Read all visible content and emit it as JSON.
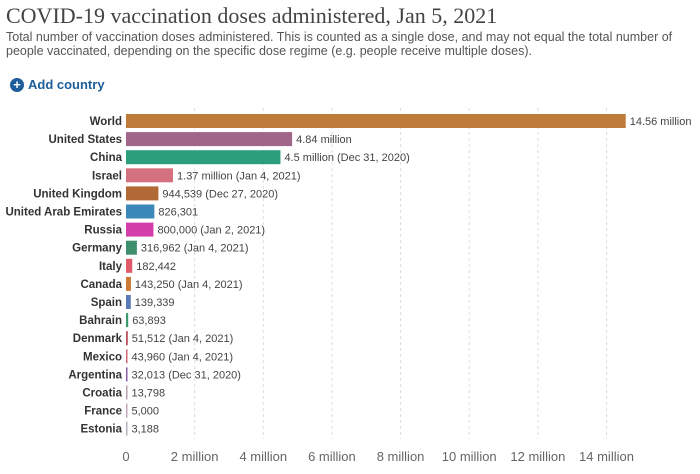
{
  "header": {
    "title": "COVID-19 vaccination doses administered, Jan 5, 2021",
    "subtitle": "Total number of vaccination doses administered. This is counted as a single dose, and may not equal the total number of people vaccinated, depending on the specific dose regime (e.g. people receive multiple doses)."
  },
  "controls": {
    "add_country_label": "Add country",
    "add_icon": "plus-circle-icon"
  },
  "chart_data": {
    "type": "bar",
    "orientation": "horizontal",
    "title": "COVID-19 vaccination doses administered, Jan 5, 2021",
    "xlim": [
      0,
      15000000
    ],
    "grid": true,
    "ticks": [
      {
        "value": 0,
        "label": "0"
      },
      {
        "value": 2000000,
        "label": "2 million"
      },
      {
        "value": 4000000,
        "label": "4 million"
      },
      {
        "value": 6000000,
        "label": "6 million"
      },
      {
        "value": 8000000,
        "label": "8 million"
      },
      {
        "value": 10000000,
        "label": "10 million"
      },
      {
        "value": 12000000,
        "label": "12 million"
      },
      {
        "value": 14000000,
        "label": "14 million"
      }
    ],
    "categories": [
      "World",
      "United States",
      "China",
      "Israel",
      "United Kingdom",
      "United Arab Emirates",
      "Russia",
      "Germany",
      "Italy",
      "Canada",
      "Spain",
      "Bahrain",
      "Denmark",
      "Mexico",
      "Argentina",
      "Croatia",
      "France",
      "Estonia"
    ],
    "values": [
      14560000,
      4840000,
      4500000,
      1370000,
      944539,
      826301,
      800000,
      316962,
      182442,
      143250,
      139339,
      63893,
      51512,
      43960,
      32013,
      13798,
      5000,
      3188
    ],
    "value_labels": [
      "14.56 million",
      "4.84 million",
      "4.5 million (Dec 31, 2020)",
      "1.37 million (Jan 4, 2021)",
      "944,539 (Dec 27, 2020)",
      "826,301",
      "800,000 (Jan 2, 2021)",
      "316,962 (Jan 4, 2021)",
      "182,442",
      "143,250 (Jan 4, 2021)",
      "139,339",
      "63,893",
      "51,512 (Jan 4, 2021)",
      "43,960 (Jan 4, 2021)",
      "32,013 (Dec 31, 2020)",
      "13,798",
      "5,000",
      "3,188"
    ],
    "colors": [
      "#be7b3a",
      "#a2658a",
      "#2d9e7c",
      "#d5707f",
      "#b16935",
      "#3a89b8",
      "#d43eaa",
      "#3d8f6e",
      "#e05a6a",
      "#cc7a33",
      "#5a7bb5",
      "#3a9b6a",
      "#b84a55",
      "#d66b7a",
      "#8a5ca8",
      "#b8a0b0",
      "#c0a8b8",
      "#b8b0c0"
    ]
  }
}
